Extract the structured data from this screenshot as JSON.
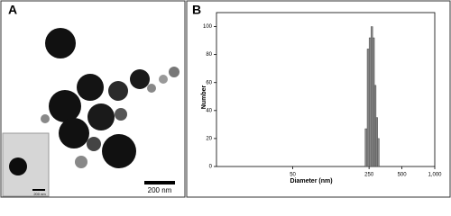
{
  "panel_a": {
    "label": "A",
    "scale_bar": "200 nm",
    "inset_scale_bar": "200 nm"
  },
  "chart_data": {
    "type": "histogram",
    "label": "B",
    "xlabel": "Diameter (nm)",
    "ylabel": "Number",
    "bins": [
      230,
      240,
      250,
      260,
      270,
      280,
      290,
      300,
      310
    ],
    "values": [
      27,
      84,
      92,
      100,
      92,
      58,
      35,
      20
    ],
    "color": "#8c8c8c",
    "xscale": "log",
    "xlim": [
      10,
      1000
    ],
    "xticks": [
      50,
      250,
      500,
      {
        "value": 1000,
        "label": "1,000"
      }
    ],
    "ylim": [
      0,
      110
    ],
    "yticks": [
      0,
      20,
      40,
      60,
      80,
      100
    ]
  }
}
